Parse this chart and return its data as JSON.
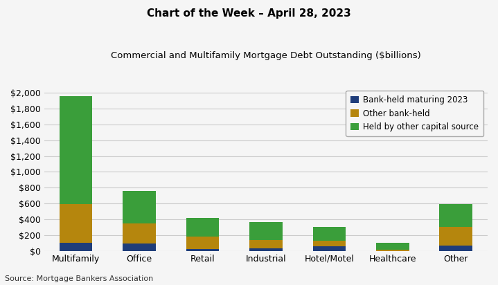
{
  "title1": "Chart of the Week – April 28, 2023",
  "title2": "Commercial and Multifamily Mortgage Debt Outstanding ($billions)",
  "categories": [
    "Multifamily",
    "Office",
    "Retail",
    "Industrial",
    "Hotel/Motel",
    "Healthcare",
    "Other"
  ],
  "bank_held_maturing": [
    100,
    90,
    25,
    30,
    55,
    0,
    70
  ],
  "other_bank_held": [
    490,
    255,
    155,
    110,
    75,
    15,
    230
  ],
  "held_other_capital": [
    1370,
    410,
    240,
    225,
    175,
    85,
    290
  ],
  "colors": {
    "bank_held_maturing": "#1f3d7a",
    "other_bank_held": "#b5860d",
    "held_other_capital": "#3a9e3a"
  },
  "legend_labels": [
    "Bank-held maturing 2023",
    "Other bank-held",
    "Held by other capital source"
  ],
  "ylim": [
    0,
    2100
  ],
  "yticks": [
    0,
    200,
    400,
    600,
    800,
    1000,
    1200,
    1400,
    1600,
    1800,
    2000
  ],
  "source": "Source: Mortgage Bankers Association",
  "background_color": "#f5f5f5",
  "grid_color": "#cccccc"
}
